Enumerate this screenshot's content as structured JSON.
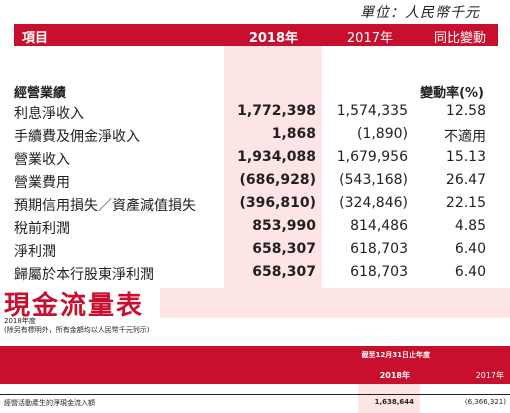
{
  "unit_label": "單位：人民幣千元",
  "header": {
    "col0": "項目",
    "col1": "2018年",
    "col2": "2017年",
    "col3": "同比變動"
  },
  "section_title": "經營業績",
  "change_header": "變動率(%)",
  "rows": [
    {
      "label": "利息淨收入",
      "v2018": "1,772,398",
      "v2017": "1,574,335",
      "change": "12.58"
    },
    {
      "label": "手續費及佣金淨收入",
      "v2018": "1,868",
      "v2017": "(1,890)",
      "change": "不適用"
    },
    {
      "label": "營業收入",
      "v2018": "1,934,088",
      "v2017": "1,679,956",
      "change": "15.13"
    },
    {
      "label": "營業費用",
      "v2018": "(686,928)",
      "v2017": "(543,168)",
      "change": "26.47"
    },
    {
      "label": "預期信用損失／資產減值損失",
      "v2018": "(396,810)",
      "v2017": "(324,846)",
      "change": "22.15"
    },
    {
      "label": "稅前利潤",
      "v2018": "853,990",
      "v2017": "814,486",
      "change": "4.85"
    },
    {
      "label": "淨利潤",
      "v2018": "658,307",
      "v2017": "618,703",
      "change": "6.40"
    },
    {
      "label": "歸屬於本行股東淨利潤",
      "v2018": "658,307",
      "v2017": "618,703",
      "change": "6.40"
    }
  ],
  "cashflow": {
    "title": "現金流量表",
    "year_label": "2018年度",
    "note": "(除另有標明外，所有金額均以人民幣千元列示)",
    "period_header": "截至12月31日止年度",
    "col1": "2018年",
    "col2": "2017年",
    "row": {
      "label": "經營活動產生的淨現金流入額",
      "v2018": "1,638,644",
      "v2017": "(6,366,321)"
    }
  }
}
